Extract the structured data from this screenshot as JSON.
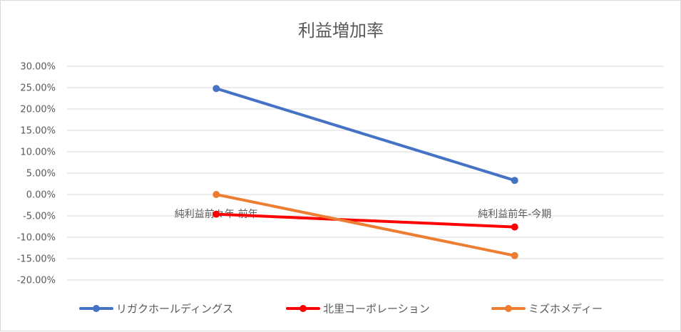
{
  "chart_data": {
    "type": "line",
    "title": "利益増加率",
    "categories": [
      "純利益前々年-前年",
      "純利益前年-今期"
    ],
    "series": [
      {
        "name": "リガクホールディングス",
        "values": [
          24.8,
          3.3
        ],
        "color": "#4472c4"
      },
      {
        "name": "北里コーポレーション",
        "values": [
          -4.6,
          -7.6
        ],
        "color": "#ff0000"
      },
      {
        "name": "ミズホメディー",
        "values": [
          0.0,
          -14.3
        ],
        "color": "#ed7d31"
      }
    ],
    "yticks": [
      "30.00%",
      "25.00%",
      "20.00%",
      "15.00%",
      "10.00%",
      "5.00%",
      "0.00%",
      "-5.00%",
      "-10.00%",
      "-15.00%",
      "-20.00%"
    ],
    "ylim": [
      -20,
      30
    ],
    "grid": true,
    "legend_position": "bottom"
  }
}
